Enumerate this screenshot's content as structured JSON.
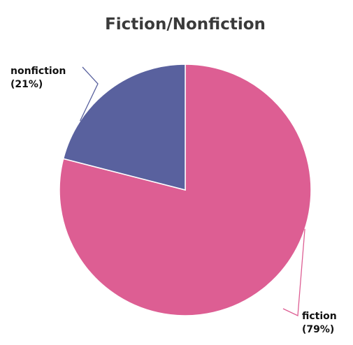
{
  "chart_data": {
    "type": "pie",
    "title": "Fiction/Nonfiction",
    "start_angle_deg": 0,
    "direction": "clockwise",
    "legend": "none",
    "slices": [
      {
        "name": "fiction",
        "value": 79,
        "label_line1": "fiction",
        "label_line2": "(79%)",
        "color": "#dd5e93"
      },
      {
        "name": "nonfiction",
        "value": 21,
        "label_line1": "nonfiction",
        "label_line2": "(21%)",
        "color": "#59619e"
      }
    ]
  }
}
